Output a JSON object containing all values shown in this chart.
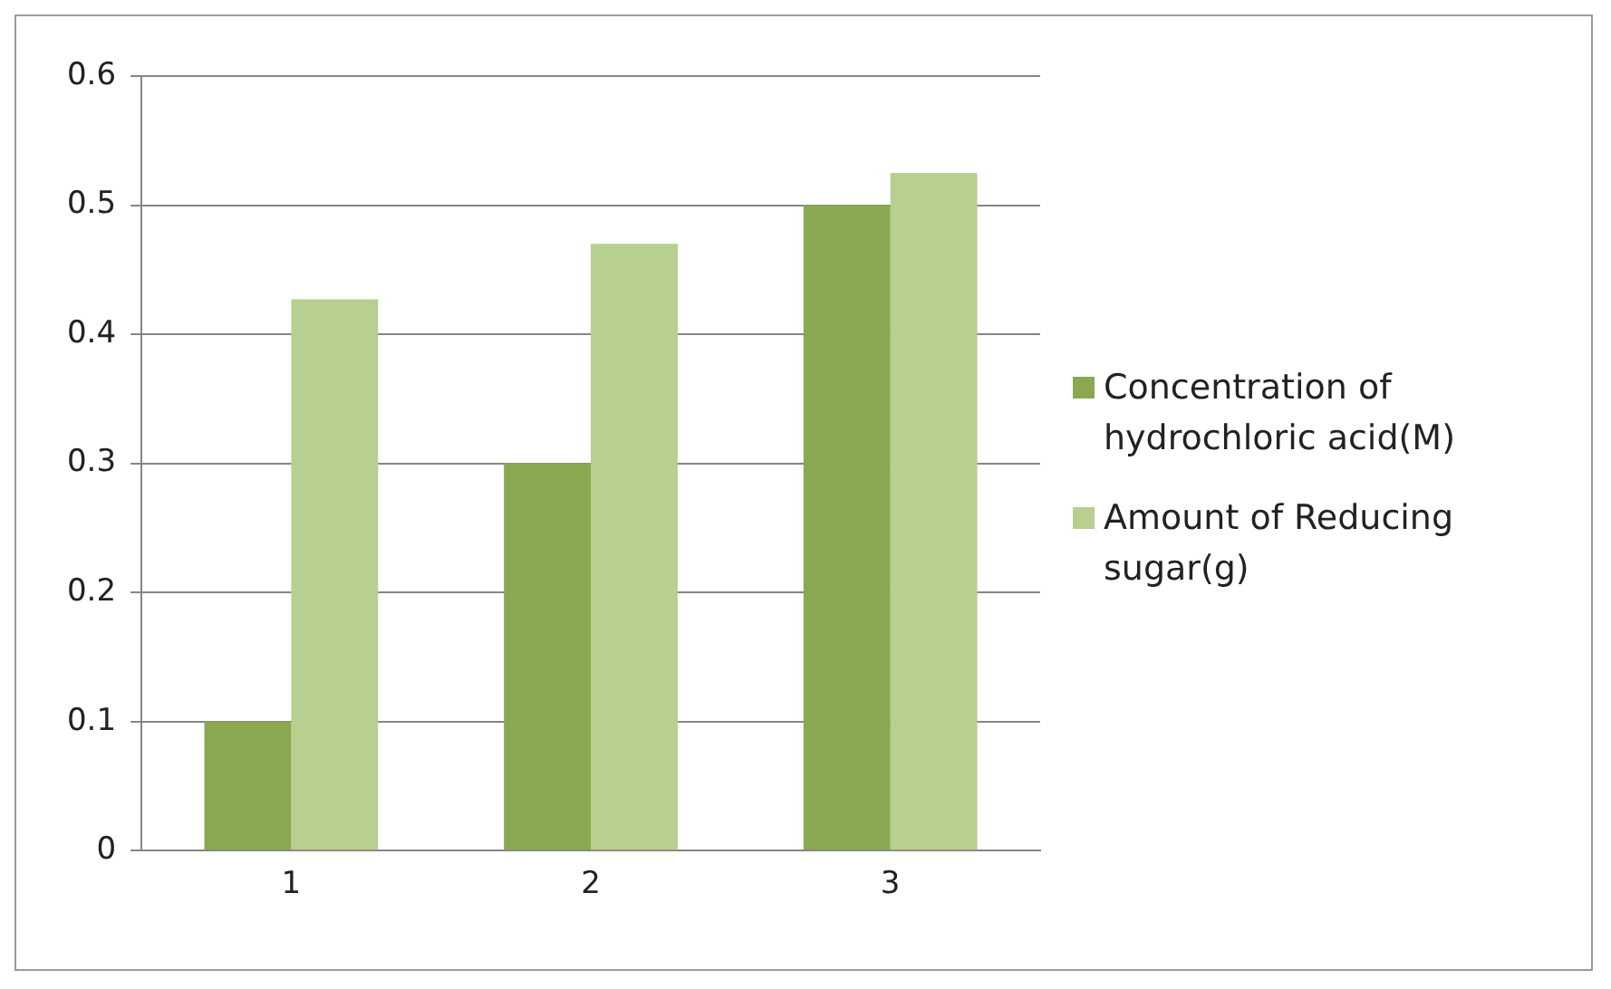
{
  "chart_data": {
    "type": "bar",
    "categories": [
      "1",
      "2",
      "3"
    ],
    "series": [
      {
        "name": "Concentration of hydrochloric acid(M)",
        "color": "#8aa84f",
        "values": [
          0.1,
          0.3,
          0.5
        ]
      },
      {
        "name": "Amount of Reducing sugar(g)",
        "color": "#b7cf8f",
        "values": [
          0.427,
          0.47,
          0.525
        ]
      }
    ],
    "ylim": [
      0,
      0.6
    ],
    "yticks": [
      0,
      0.1,
      0.2,
      0.3,
      0.4,
      0.5,
      0.6
    ],
    "grid": "y",
    "legend": "right"
  }
}
